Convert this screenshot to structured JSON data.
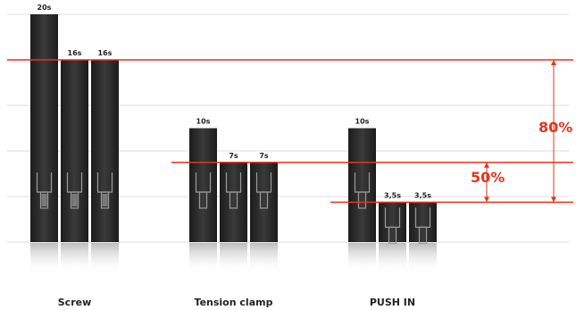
{
  "chart_data": {
    "type": "bar",
    "unit": "s",
    "categories": [
      "Screw",
      "Tension clamp",
      "PUSH IN"
    ],
    "groups": [
      {
        "category": "Screw",
        "values": [
          20,
          16,
          16
        ],
        "labels": [
          "20s",
          "16s",
          "16s"
        ]
      },
      {
        "category": "Tension clamp",
        "values": [
          10,
          7,
          7
        ],
        "labels": [
          "10s",
          "7s",
          "7s"
        ]
      },
      {
        "category": "PUSH IN",
        "values": [
          10,
          3.5,
          3.5
        ],
        "labels": [
          "10s",
          "3,5s",
          "3,5s"
        ]
      }
    ],
    "ylim": [
      0,
      20
    ],
    "grid": true,
    "reference_lines": [
      {
        "value": 16,
        "label": ""
      },
      {
        "value": 7,
        "label": ""
      },
      {
        "value": 3.5,
        "label": ""
      }
    ],
    "annotations": [
      {
        "text": "80%",
        "from": 16,
        "to": 3.5
      },
      {
        "text": "50%",
        "from": 7,
        "to": 3.5
      }
    ],
    "colors": {
      "bar": "#2b2b2b",
      "bar_light": "#3d3d3d",
      "accent": "#e8341c",
      "grid": "#dddddd"
    }
  }
}
